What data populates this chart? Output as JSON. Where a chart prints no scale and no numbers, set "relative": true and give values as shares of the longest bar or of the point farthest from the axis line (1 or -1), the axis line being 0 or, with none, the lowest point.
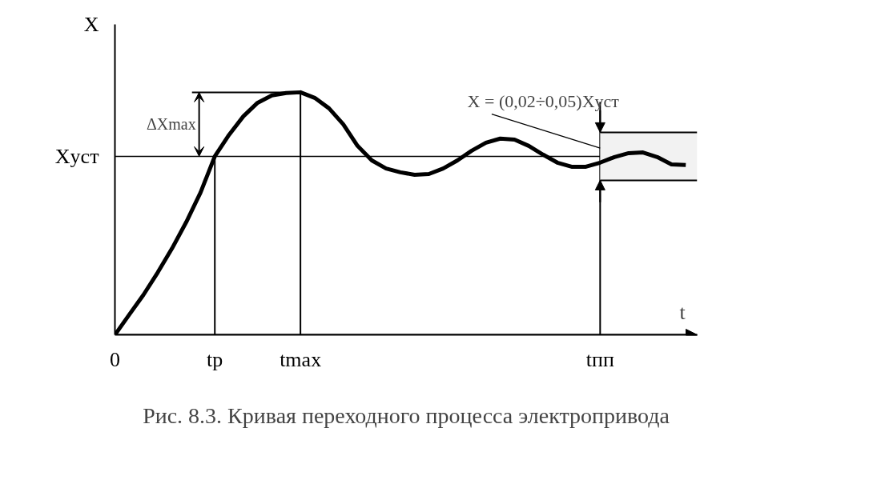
{
  "chart_data": {
    "type": "line",
    "relative": true,
    "xlabel": "t",
    "ylabel": "X",
    "categories": [
      "0",
      null,
      null,
      null,
      null,
      null,
      null,
      "tр",
      null,
      null,
      null,
      null,
      null,
      "tmax",
      null,
      null,
      null,
      null,
      null,
      null,
      null,
      null,
      null,
      null,
      null,
      null,
      null,
      null,
      null,
      null,
      null,
      null,
      null,
      null,
      "tпп",
      null,
      null,
      null,
      null,
      null,
      null
    ],
    "series": [
      {
        "color": "#000000",
        "values": [
          0,
          0.083,
          0.165,
          0.257,
          0.356,
          0.465,
          0.587,
          0.736,
          0.825,
          0.901,
          0.957,
          0.987,
          0.997,
          1.0,
          0.977,
          0.934,
          0.868,
          0.779,
          0.719,
          0.686,
          0.67,
          0.66,
          0.663,
          0.686,
          0.719,
          0.759,
          0.792,
          0.809,
          0.805,
          0.779,
          0.743,
          0.71,
          0.693,
          0.693,
          0.71,
          0.733,
          0.749,
          0.752,
          0.733,
          0.703,
          0.7
        ]
      }
    ],
    "ref_lines": [
      {
        "axis": "y",
        "value": 0.736,
        "label": "Xуст"
      }
    ],
    "bands": [
      {
        "axis": "y",
        "from": 0.637,
        "to": 0.835
      }
    ],
    "annotations": [
      "ΔXmax",
      "X = (0,02÷0,05)Xуст",
      "Рис. 8.3. Кривая переходного процесса электропривода"
    ],
    "grid": "x",
    "marker": "none",
    "line_style": "solid"
  }
}
